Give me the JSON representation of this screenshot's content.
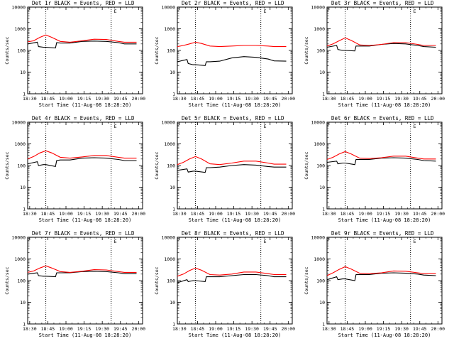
{
  "chart_data": [
    {
      "type": "line",
      "title": "Det 1r BLACK = Events, RED = LLD",
      "xlabel": "Start Time (11-Aug-08 18:28:20)",
      "ylabel": "Counts/sec",
      "yscale": "log",
      "ylim": [
        1,
        10000
      ],
      "yticks": [
        "1",
        "10",
        "100",
        "1000",
        "10000"
      ],
      "xticks": [
        "18:30",
        "18:45",
        "19:00",
        "19:15",
        "19:30",
        "19:45",
        "20:00"
      ],
      "xlim_minutes": [
        0,
        95
      ],
      "vlines": [
        15,
        69
      ],
      "marker_label": "E",
      "series": [
        {
          "color": "#000000",
          "x": [
            0,
            8,
            9,
            13,
            15,
            23,
            24,
            27,
            35,
            45,
            55,
            65,
            75,
            80,
            90
          ],
          "values": [
            200,
            240,
            150,
            140,
            140,
            130,
            230,
            220,
            220,
            260,
            270,
            260,
            230,
            200,
            200
          ]
        },
        {
          "color": "#ff0000",
          "x": [
            0,
            5,
            10,
            15,
            20,
            27,
            35,
            45,
            55,
            65,
            75,
            80,
            90
          ],
          "values": [
            250,
            280,
            400,
            520,
            400,
            260,
            240,
            280,
            330,
            320,
            260,
            240,
            240
          ]
        }
      ]
    },
    {
      "type": "line",
      "title": "Det 2r BLACK = Events, RED = LLD",
      "xlabel": "Start Time (11-Aug-08 18:28:20)",
      "ylabel": "Counts/sec",
      "yscale": "log",
      "ylim": [
        1,
        10000
      ],
      "yticks": [
        "1",
        "10",
        "100",
        "1000",
        "10000"
      ],
      "xticks": [
        "18:30",
        "18:45",
        "19:00",
        "19:15",
        "19:30",
        "19:45",
        "20:00"
      ],
      "xlim_minutes": [
        0,
        95
      ],
      "vlines": [
        15,
        69
      ],
      "marker_label": "E",
      "series": [
        {
          "color": "#000000",
          "x": [
            0,
            8,
            9,
            13,
            15,
            23,
            24,
            27,
            35,
            45,
            55,
            65,
            75,
            80,
            90
          ],
          "values": [
            30,
            38,
            25,
            22,
            22,
            20,
            30,
            30,
            32,
            45,
            52,
            48,
            40,
            33,
            32
          ]
        },
        {
          "color": "#ff0000",
          "x": [
            0,
            5,
            10,
            15,
            20,
            27,
            35,
            45,
            55,
            65,
            75,
            80,
            90
          ],
          "values": [
            150,
            170,
            200,
            240,
            210,
            160,
            150,
            160,
            170,
            170,
            160,
            150,
            150
          ]
        }
      ]
    },
    {
      "type": "line",
      "title": "Det 3r BLACK = Events, RED = LLD",
      "xlabel": "Start Time (11-Aug-08 18:28:20)",
      "ylabel": "Counts/sec",
      "yscale": "log",
      "ylim": [
        1,
        10000
      ],
      "yticks": [
        "1",
        "10",
        "100",
        "1000",
        "10000"
      ],
      "xticks": [
        "18:30",
        "18:45",
        "19:00",
        "19:15",
        "19:30",
        "19:45",
        "20:00"
      ],
      "xlim_minutes": [
        0,
        95
      ],
      "vlines": [
        15,
        69
      ],
      "marker_label": "E",
      "series": [
        {
          "color": "#000000",
          "x": [
            0,
            8,
            9,
            13,
            15,
            23,
            24,
            27,
            35,
            45,
            55,
            65,
            75,
            80,
            90
          ],
          "values": [
            140,
            170,
            110,
            100,
            100,
            95,
            160,
            160,
            160,
            190,
            210,
            200,
            170,
            150,
            140
          ]
        },
        {
          "color": "#ff0000",
          "x": [
            0,
            5,
            10,
            15,
            20,
            27,
            35,
            45,
            55,
            65,
            75,
            80,
            90
          ],
          "values": [
            160,
            200,
            280,
            380,
            290,
            180,
            170,
            190,
            230,
            230,
            190,
            170,
            170
          ]
        }
      ]
    },
    {
      "type": "line",
      "title": "Det 4r BLACK = Events, RED = LLD",
      "xlabel": "Start Time (11-Aug-08 18:28:20)",
      "ylabel": "Counts/sec",
      "yscale": "log",
      "ylim": [
        1,
        10000
      ],
      "yticks": [
        "1",
        "10",
        "100",
        "1000",
        "10000"
      ],
      "xticks": [
        "18:30",
        "18:45",
        "19:00",
        "19:15",
        "19:30",
        "19:45",
        "20:00"
      ],
      "xlim_minutes": [
        0,
        95
      ],
      "vlines": [
        15,
        69
      ],
      "marker_label": "E",
      "series": [
        {
          "color": "#000000",
          "x": [
            0,
            8,
            9,
            13,
            15,
            23,
            24,
            27,
            35,
            45,
            55,
            65,
            75,
            80,
            90
          ],
          "values": [
            120,
            150,
            100,
            110,
            110,
            90,
            170,
            180,
            180,
            220,
            230,
            220,
            190,
            170,
            170
          ]
        },
        {
          "color": "#ff0000",
          "x": [
            0,
            5,
            10,
            15,
            20,
            27,
            35,
            45,
            55,
            65,
            75,
            80,
            90
          ],
          "values": [
            200,
            260,
            380,
            480,
            380,
            240,
            220,
            250,
            290,
            290,
            240,
            220,
            220
          ]
        }
      ]
    },
    {
      "type": "line",
      "title": "Det 5r BLACK = Events, RED = LLD",
      "xlabel": "Start Time (11-Aug-08 18:28:20)",
      "ylabel": "Counts/sec",
      "yscale": "log",
      "ylim": [
        1,
        10000
      ],
      "yticks": [
        "1",
        "10",
        "100",
        "1000",
        "10000"
      ],
      "xticks": [
        "18:30",
        "18:45",
        "19:00",
        "19:15",
        "19:30",
        "19:45",
        "20:00"
      ],
      "xlim_minutes": [
        0,
        95
      ],
      "vlines": [
        15,
        69
      ],
      "marker_label": "E",
      "series": [
        {
          "color": "#000000",
          "x": [
            0,
            8,
            9,
            13,
            15,
            23,
            24,
            27,
            35,
            45,
            55,
            65,
            75,
            80,
            90
          ],
          "values": [
            60,
            70,
            50,
            55,
            55,
            48,
            80,
            80,
            85,
            100,
            110,
            105,
            90,
            85,
            85
          ]
        },
        {
          "color": "#ff0000",
          "x": [
            0,
            5,
            10,
            15,
            20,
            27,
            35,
            45,
            55,
            65,
            75,
            80,
            90
          ],
          "values": [
            110,
            140,
            200,
            260,
            200,
            120,
            110,
            130,
            160,
            160,
            130,
            115,
            115
          ]
        }
      ]
    },
    {
      "type": "line",
      "title": "Det 6r BLACK = Events, RED = LLD",
      "xlabel": "Start Time (11-Aug-08 18:28:20)",
      "ylabel": "Counts/sec",
      "yscale": "log",
      "ylim": [
        1,
        10000
      ],
      "yticks": [
        "1",
        "10",
        "100",
        "1000",
        "10000"
      ],
      "xticks": [
        "18:30",
        "18:45",
        "19:00",
        "19:15",
        "19:30",
        "19:45",
        "20:00"
      ],
      "xlim_minutes": [
        0,
        95
      ],
      "vlines": [
        15,
        69
      ],
      "marker_label": "E",
      "series": [
        {
          "color": "#000000",
          "x": [
            0,
            8,
            9,
            13,
            15,
            23,
            24,
            27,
            35,
            45,
            55,
            65,
            75,
            80,
            90
          ],
          "values": [
            140,
            160,
            120,
            130,
            130,
            110,
            190,
            190,
            190,
            220,
            230,
            220,
            190,
            170,
            160
          ]
        },
        {
          "color": "#ff0000",
          "x": [
            0,
            5,
            10,
            15,
            20,
            27,
            35,
            45,
            55,
            65,
            75,
            80,
            90
          ],
          "values": [
            190,
            240,
            340,
            440,
            340,
            220,
            210,
            230,
            270,
            270,
            220,
            200,
            200
          ]
        }
      ]
    },
    {
      "type": "line",
      "title": "Det 7r BLACK = Events, RED = LLD",
      "xlabel": "Start Time (11-Aug-08 18:28:20)",
      "ylabel": "Counts/sec",
      "yscale": "log",
      "ylim": [
        1,
        10000
      ],
      "yticks": [
        "1",
        "10",
        "100",
        "1000",
        "10000"
      ],
      "xticks": [
        "18:30",
        "18:45",
        "19:00",
        "19:15",
        "19:30",
        "19:45",
        "20:00"
      ],
      "xlim_minutes": [
        0,
        95
      ],
      "vlines": [
        15,
        69
      ],
      "marker_label": "E",
      "series": [
        {
          "color": "#000000",
          "x": [
            0,
            8,
            9,
            13,
            15,
            23,
            24,
            27,
            35,
            45,
            55,
            65,
            75,
            80,
            90
          ],
          "values": [
            200,
            230,
            170,
            160,
            160,
            150,
            230,
            230,
            230,
            260,
            270,
            260,
            230,
            210,
            210
          ]
        },
        {
          "color": "#ff0000",
          "x": [
            0,
            5,
            10,
            15,
            20,
            27,
            35,
            45,
            55,
            65,
            75,
            80,
            90
          ],
          "values": [
            240,
            280,
            380,
            480,
            380,
            260,
            240,
            270,
            320,
            310,
            260,
            240,
            240
          ]
        }
      ]
    },
    {
      "type": "line",
      "title": "Det 8r BLACK = Events, RED = LLD",
      "xlabel": "Start Time (11-Aug-08 18:28:20)",
      "ylabel": "Counts/sec",
      "yscale": "log",
      "ylim": [
        1,
        10000
      ],
      "yticks": [
        "1",
        "10",
        "100",
        "1000",
        "10000"
      ],
      "xticks": [
        "18:30",
        "18:45",
        "19:00",
        "19:15",
        "19:30",
        "19:45",
        "20:00"
      ],
      "xlim_minutes": [
        0,
        95
      ],
      "vlines": [
        15,
        69
      ],
      "marker_label": "E",
      "series": [
        {
          "color": "#000000",
          "x": [
            0,
            8,
            9,
            13,
            15,
            23,
            24,
            27,
            35,
            45,
            55,
            65,
            75,
            80,
            90
          ],
          "values": [
            80,
            110,
            90,
            100,
            100,
            90,
            150,
            150,
            150,
            170,
            190,
            190,
            170,
            150,
            150
          ]
        },
        {
          "color": "#ff0000",
          "x": [
            0,
            5,
            10,
            15,
            20,
            27,
            35,
            45,
            55,
            65,
            75,
            80,
            90
          ],
          "values": [
            160,
            200,
            290,
            380,
            300,
            190,
            180,
            200,
            250,
            250,
            210,
            190,
            190
          ]
        }
      ]
    },
    {
      "type": "line",
      "title": "Det 9r BLACK = Events, RED = LLD",
      "xlabel": "Start Time (11-Aug-08 18:28:20)",
      "ylabel": "Counts/sec",
      "yscale": "log",
      "ylim": [
        1,
        10000
      ],
      "yticks": [
        "1",
        "10",
        "100",
        "1000",
        "10000"
      ],
      "xticks": [
        "18:30",
        "18:45",
        "19:00",
        "19:15",
        "19:30",
        "19:45",
        "20:00"
      ],
      "xlim_minutes": [
        0,
        95
      ],
      "vlines": [
        15,
        69
      ],
      "marker_label": "E",
      "series": [
        {
          "color": "#000000",
          "x": [
            0,
            8,
            9,
            13,
            15,
            23,
            24,
            27,
            35,
            45,
            55,
            65,
            75,
            80,
            90
          ],
          "values": [
            110,
            150,
            110,
            120,
            120,
            100,
            190,
            190,
            190,
            220,
            230,
            220,
            200,
            180,
            170
          ]
        },
        {
          "color": "#ff0000",
          "x": [
            0,
            5,
            10,
            15,
            20,
            27,
            35,
            45,
            55,
            65,
            75,
            80,
            90
          ],
          "values": [
            170,
            230,
            330,
            440,
            340,
            220,
            210,
            230,
            280,
            270,
            230,
            210,
            210
          ]
        }
      ]
    }
  ]
}
